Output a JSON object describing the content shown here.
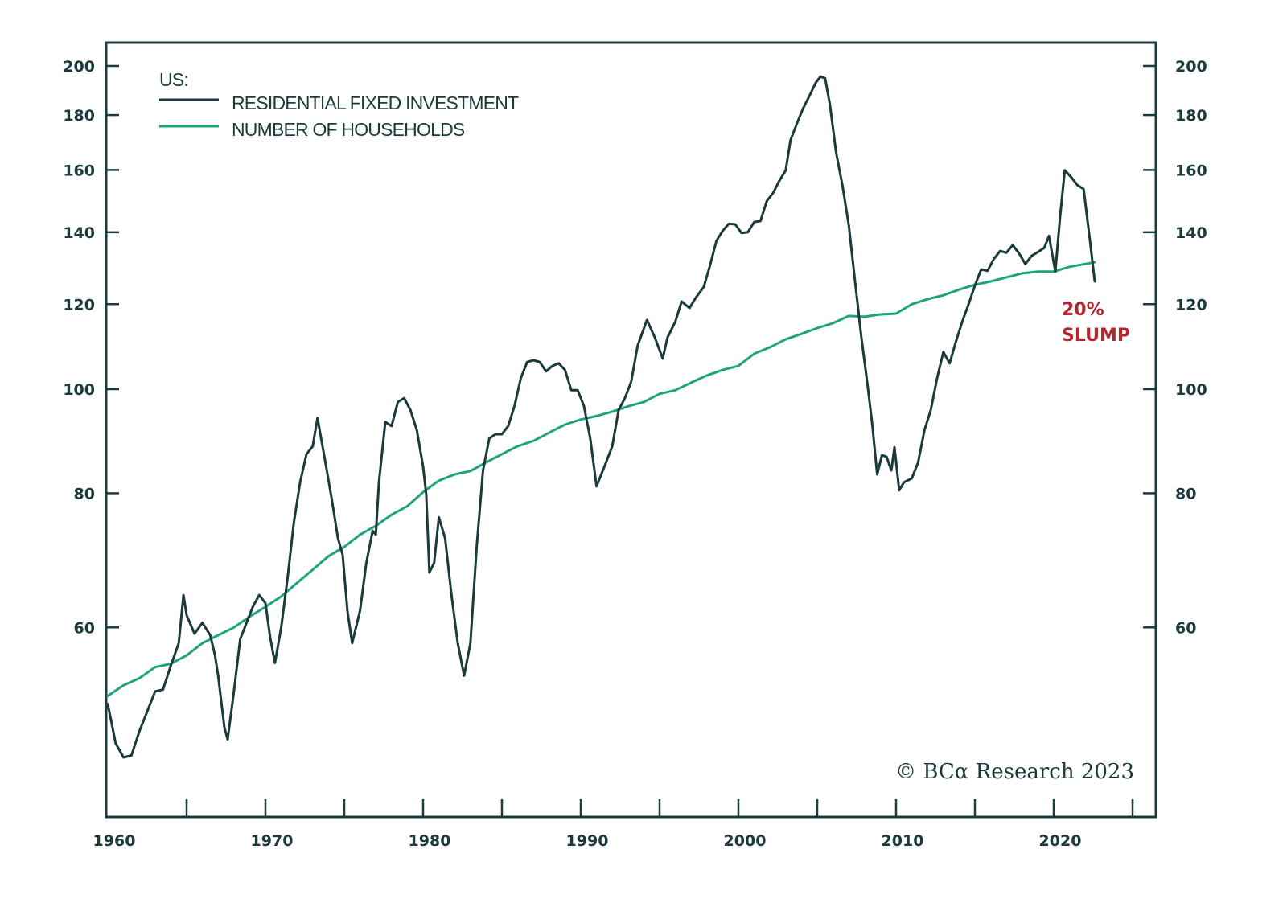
{
  "chart_data": {
    "type": "line",
    "title": "",
    "legend": {
      "heading": "US:",
      "placement": "top-left",
      "entries": [
        {
          "label": "RESIDENTIAL FIXED INVESTMENT",
          "color": "#1b3a3c"
        },
        {
          "label": "NUMBER OF HOUSEHOLDS",
          "color": "#1fa37a"
        }
      ]
    },
    "xlabel": "",
    "ylabel": "",
    "xlim": [
      1960,
      2028
    ],
    "x_tick_labels": [
      "1960",
      "1970",
      "1980",
      "1990",
      "2000",
      "2010",
      "2020"
    ],
    "x_minor_ticks": [
      1965,
      1970,
      1975,
      1980,
      1985,
      1990,
      1995,
      2000,
      2005,
      2010,
      2015,
      2020,
      2025
    ],
    "y_scale": "log",
    "ylim": [
      40,
      215
    ],
    "y_ticks": [
      60,
      80,
      100,
      120,
      140,
      160,
      180,
      200
    ],
    "y_tick_labels_left": [
      "60",
      "80",
      "100",
      "120",
      "140",
      "160",
      "180",
      "200"
    ],
    "y_tick_labels_right": [
      "60",
      "80",
      "100",
      "120",
      "140",
      "160",
      "180",
      "200"
    ],
    "grid": false,
    "series": [
      {
        "name": "RESIDENTIAL FIXED INVESTMENT",
        "color": "#1b3a3c",
        "points": [
          [
            1960.0,
            50.9
          ],
          [
            1960.5,
            46.8
          ],
          [
            1961.0,
            45.4
          ],
          [
            1961.5,
            45.6
          ],
          [
            1962.0,
            48.0
          ],
          [
            1962.5,
            50.1
          ],
          [
            1963.0,
            52.3
          ],
          [
            1963.5,
            52.5
          ],
          [
            1964.0,
            55.3
          ],
          [
            1964.5,
            58.0
          ],
          [
            1964.8,
            64.3
          ],
          [
            1965.0,
            61.6
          ],
          [
            1965.5,
            59.2
          ],
          [
            1966.0,
            60.6
          ],
          [
            1966.5,
            59.0
          ],
          [
            1966.8,
            56.5
          ],
          [
            1967.0,
            54.1
          ],
          [
            1967.4,
            48.4
          ],
          [
            1967.6,
            47.2
          ],
          [
            1968.0,
            52.3
          ],
          [
            1968.4,
            58.5
          ],
          [
            1968.8,
            60.6
          ],
          [
            1969.2,
            62.7
          ],
          [
            1969.6,
            64.3
          ],
          [
            1970.0,
            63.2
          ],
          [
            1970.3,
            58.7
          ],
          [
            1970.6,
            55.6
          ],
          [
            1971.0,
            60.0
          ],
          [
            1971.4,
            66.6
          ],
          [
            1971.8,
            75.1
          ],
          [
            1972.2,
            81.9
          ],
          [
            1972.6,
            87.0
          ],
          [
            1973.0,
            88.5
          ],
          [
            1973.3,
            94.0
          ],
          [
            1973.8,
            85.5
          ],
          [
            1974.2,
            79.1
          ],
          [
            1974.6,
            72.6
          ],
          [
            1974.9,
            70.1
          ],
          [
            1975.2,
            62.2
          ],
          [
            1975.5,
            58.0
          ],
          [
            1976.0,
            62.2
          ],
          [
            1976.4,
            68.9
          ],
          [
            1976.8,
            73.8
          ],
          [
            1977.0,
            73.2
          ],
          [
            1977.2,
            81.9
          ],
          [
            1977.6,
            93.2
          ],
          [
            1978.0,
            92.4
          ],
          [
            1978.4,
            97.3
          ],
          [
            1978.8,
            98.1
          ],
          [
            1979.2,
            95.6
          ],
          [
            1979.6,
            91.6
          ],
          [
            1980.0,
            84.7
          ],
          [
            1980.2,
            79.8
          ],
          [
            1980.4,
            67.5
          ],
          [
            1980.7,
            68.9
          ],
          [
            1981.0,
            76.0
          ],
          [
            1981.4,
            72.6
          ],
          [
            1981.8,
            64.3
          ],
          [
            1982.2,
            58.0
          ],
          [
            1982.6,
            54.1
          ],
          [
            1983.0,
            58.0
          ],
          [
            1983.4,
            71.3
          ],
          [
            1983.8,
            84.0
          ],
          [
            1984.2,
            90.0
          ],
          [
            1984.6,
            90.8
          ],
          [
            1985.0,
            90.8
          ],
          [
            1985.4,
            92.4
          ],
          [
            1985.8,
            96.5
          ],
          [
            1986.2,
            102.4
          ],
          [
            1986.6,
            106.0
          ],
          [
            1987.0,
            106.4
          ],
          [
            1987.4,
            106.0
          ],
          [
            1987.8,
            103.9
          ],
          [
            1988.2,
            105.1
          ],
          [
            1988.6,
            105.7
          ],
          [
            1989.0,
            104.2
          ],
          [
            1989.4,
            99.8
          ],
          [
            1989.8,
            99.8
          ],
          [
            1990.2,
            96.5
          ],
          [
            1990.6,
            90.0
          ],
          [
            1991.0,
            81.2
          ],
          [
            1991.5,
            84.7
          ],
          [
            1992.0,
            88.5
          ],
          [
            1992.4,
            95.6
          ],
          [
            1992.8,
            98.1
          ],
          [
            1993.2,
            101.6
          ],
          [
            1993.6,
            109.7
          ],
          [
            1994.2,
            116.0
          ],
          [
            1994.7,
            111.7
          ],
          [
            1995.2,
            106.8
          ],
          [
            1995.5,
            111.7
          ],
          [
            1996.0,
            115.6
          ],
          [
            1996.4,
            120.7
          ],
          [
            1996.9,
            119.0
          ],
          [
            1997.3,
            121.7
          ],
          [
            1997.8,
            124.5
          ],
          [
            1998.2,
            130.4
          ],
          [
            1998.6,
            137.4
          ],
          [
            1999.0,
            140.4
          ],
          [
            1999.4,
            142.6
          ],
          [
            1999.8,
            142.4
          ],
          [
            2000.2,
            139.8
          ],
          [
            2000.6,
            140.0
          ],
          [
            2001.0,
            143.1
          ],
          [
            2001.4,
            143.4
          ],
          [
            2001.8,
            149.7
          ],
          [
            2002.2,
            152.3
          ],
          [
            2002.6,
            156.4
          ],
          [
            2003.0,
            159.9
          ],
          [
            2003.3,
            170.5
          ],
          [
            2003.7,
            176.6
          ],
          [
            2004.1,
            182.6
          ],
          [
            2004.5,
            187.5
          ],
          [
            2004.9,
            192.8
          ],
          [
            2005.2,
            195.5
          ],
          [
            2005.5,
            194.8
          ],
          [
            2005.8,
            184.2
          ],
          [
            2006.2,
            166.0
          ],
          [
            2006.6,
            154.7
          ],
          [
            2007.0,
            142.1
          ],
          [
            2007.4,
            126.0
          ],
          [
            2007.8,
            111.7
          ],
          [
            2008.2,
            100.7
          ],
          [
            2008.5,
            92.4
          ],
          [
            2008.8,
            83.3
          ],
          [
            2009.1,
            86.8
          ],
          [
            2009.4,
            86.5
          ],
          [
            2009.7,
            84.0
          ],
          [
            2009.9,
            88.3
          ],
          [
            2010.2,
            80.5
          ],
          [
            2010.5,
            81.9
          ],
          [
            2011.0,
            82.6
          ],
          [
            2011.4,
            85.5
          ],
          [
            2011.8,
            91.6
          ],
          [
            2012.2,
            95.6
          ],
          [
            2012.6,
            102.4
          ],
          [
            2013.0,
            108.3
          ],
          [
            2013.4,
            105.7
          ],
          [
            2013.8,
            110.8
          ],
          [
            2014.2,
            115.6
          ],
          [
            2014.6,
            120.0
          ],
          [
            2015.0,
            124.9
          ],
          [
            2015.4,
            129.3
          ],
          [
            2015.8,
            128.9
          ],
          [
            2016.2,
            132.2
          ],
          [
            2016.6,
            134.5
          ],
          [
            2017.0,
            134.0
          ],
          [
            2017.4,
            136.2
          ],
          [
            2017.8,
            133.8
          ],
          [
            2018.2,
            130.8
          ],
          [
            2018.6,
            133.1
          ],
          [
            2019.0,
            134.2
          ],
          [
            2019.4,
            135.4
          ],
          [
            2019.7,
            138.9
          ],
          [
            2020.1,
            128.7
          ],
          [
            2020.4,
            144.4
          ],
          [
            2020.7,
            159.9
          ],
          [
            2021.1,
            157.6
          ],
          [
            2021.5,
            154.9
          ],
          [
            2021.9,
            153.6
          ],
          [
            2022.3,
            137.4
          ],
          [
            2022.6,
            126.0
          ]
        ]
      },
      {
        "name": "NUMBER OF HOUSEHOLDS",
        "color": "#1fa37a",
        "points": [
          [
            1960,
            51.8
          ],
          [
            1961,
            53.0
          ],
          [
            1962,
            53.8
          ],
          [
            1963,
            55.1
          ],
          [
            1964,
            55.5
          ],
          [
            1965,
            56.5
          ],
          [
            1966,
            58.0
          ],
          [
            1967,
            59.0
          ],
          [
            1968,
            60.0
          ],
          [
            1969,
            61.4
          ],
          [
            1970,
            62.7
          ],
          [
            1971,
            64.1
          ],
          [
            1972,
            66.0
          ],
          [
            1973,
            67.9
          ],
          [
            1974,
            69.9
          ],
          [
            1975,
            71.3
          ],
          [
            1976,
            73.2
          ],
          [
            1977,
            74.6
          ],
          [
            1978,
            76.4
          ],
          [
            1979,
            77.8
          ],
          [
            1980,
            80.2
          ],
          [
            1981,
            82.2
          ],
          [
            1982,
            83.3
          ],
          [
            1983,
            83.9
          ],
          [
            1984,
            85.5
          ],
          [
            1985,
            87.0
          ],
          [
            1986,
            88.5
          ],
          [
            1987,
            89.5
          ],
          [
            1988,
            91.1
          ],
          [
            1989,
            92.7
          ],
          [
            1990,
            93.7
          ],
          [
            1991,
            94.4
          ],
          [
            1992,
            95.3
          ],
          [
            1993,
            96.4
          ],
          [
            1994,
            97.3
          ],
          [
            1995,
            99.0
          ],
          [
            1996,
            99.8
          ],
          [
            1997,
            101.4
          ],
          [
            1998,
            103.0
          ],
          [
            1999,
            104.2
          ],
          [
            2000,
            105.1
          ],
          [
            2001,
            107.9
          ],
          [
            2002,
            109.4
          ],
          [
            2003,
            111.3
          ],
          [
            2004,
            112.6
          ],
          [
            2005,
            114.0
          ],
          [
            2006,
            115.2
          ],
          [
            2007,
            117.0
          ],
          [
            2008,
            116.8
          ],
          [
            2009,
            117.4
          ],
          [
            2010,
            117.6
          ],
          [
            2011,
            120.0
          ],
          [
            2012,
            121.3
          ],
          [
            2013,
            122.3
          ],
          [
            2014,
            123.8
          ],
          [
            2015,
            125.1
          ],
          [
            2016,
            126.0
          ],
          [
            2017,
            127.1
          ],
          [
            2018,
            128.2
          ],
          [
            2019,
            128.7
          ],
          [
            2020,
            128.7
          ],
          [
            2021,
            130.0
          ],
          [
            2022.6,
            131.3
          ]
        ]
      }
    ],
    "annotations": [
      {
        "text_lines": [
          "20%",
          "SLUMP"
        ],
        "color": "#b5262e",
        "anchor_x": 2021.6,
        "anchor_y": 118
      }
    ],
    "credit": "© BCα Research 2023"
  }
}
